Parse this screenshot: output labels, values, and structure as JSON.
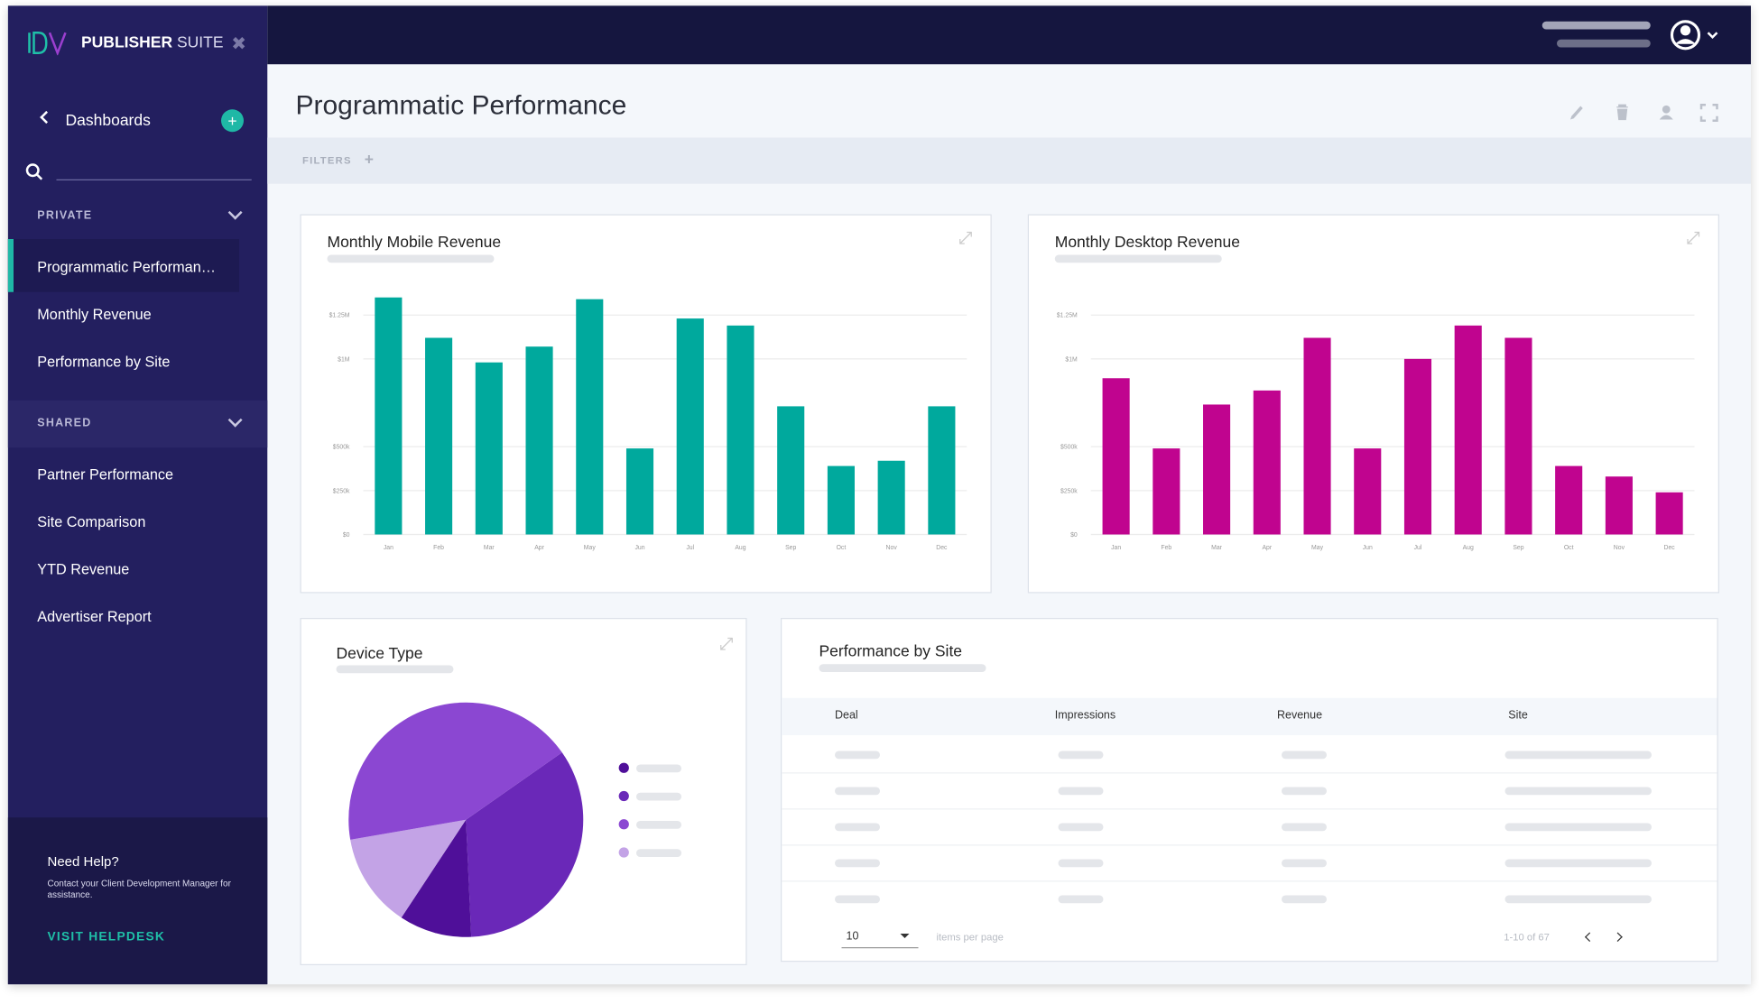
{
  "sidebar": {
    "brand_bold": "PUBLISHER",
    "brand_light": "SUITE",
    "back": "Dashboards",
    "private": {
      "title": "PRIVATE",
      "items": [
        "Programmatic Performan…",
        "Monthly Revenue",
        "Performance by Site"
      ]
    },
    "shared": {
      "title": "SHARED",
      "items": [
        "Partner Performance",
        "Site Comparison",
        "YTD Revenue",
        "Advertiser Report"
      ]
    },
    "help": {
      "title": "Need Help?",
      "text": "Contact your Client Development Manager for assistance.",
      "link": "VISIT HELPDESK"
    }
  },
  "page": {
    "title": "Programmatic Performance",
    "filters": "FILTERS"
  },
  "chart_data": [
    {
      "type": "bar",
      "title": "Monthly Mobile Revenue",
      "categories": [
        "Jan",
        "Feb",
        "Mar",
        "Apr",
        "May",
        "Jun",
        "Jul",
        "Aug",
        "Sep",
        "Oct",
        "Nov",
        "Dec"
      ],
      "values": [
        1350000,
        1120000,
        980000,
        1070000,
        1340000,
        490000,
        1230000,
        1190000,
        730000,
        390000,
        420000,
        730000
      ],
      "color": "#00a99d",
      "ylim": [
        0,
        1400000
      ],
      "yticks": [
        {
          "value": 0,
          "label": "$0"
        },
        {
          "value": 250000,
          "label": "$250k"
        },
        {
          "value": 500000,
          "label": "$500k"
        },
        {
          "value": 1000000,
          "label": "$1M"
        },
        {
          "value": 1250000,
          "label": "$1.25M"
        }
      ],
      "grid": true
    },
    {
      "type": "bar",
      "title": "Monthly Desktop Revenue",
      "categories": [
        "Jan",
        "Feb",
        "Mar",
        "Apr",
        "May",
        "Jun",
        "Jul",
        "Aug",
        "Sep",
        "Oct",
        "Nov",
        "Dec"
      ],
      "values": [
        890000,
        490000,
        740000,
        820000,
        1120000,
        490000,
        1000000,
        1190000,
        1120000,
        390000,
        330000,
        240000
      ],
      "color": "#c0048f",
      "ylim": [
        0,
        1400000
      ],
      "yticks": [
        {
          "value": 0,
          "label": "$0"
        },
        {
          "value": 250000,
          "label": "$250k"
        },
        {
          "value": 500000,
          "label": "$500k"
        },
        {
          "value": 1000000,
          "label": "$1M"
        },
        {
          "value": 1250000,
          "label": "$1.25M"
        }
      ],
      "grid": true
    },
    {
      "type": "pie",
      "title": "Device Type",
      "values": [
        34,
        10,
        13,
        43
      ],
      "colors": [
        "#6a28b8",
        "#4f0f99",
        "#c3a3e6",
        "#8b47d2"
      ]
    }
  ],
  "table": {
    "title": "Performance by Site",
    "columns": [
      "Deal",
      "Impressions",
      "Revenue",
      "Site"
    ],
    "page_size": "10",
    "page_size_label": "items per page",
    "range": "1-10 of 67"
  }
}
